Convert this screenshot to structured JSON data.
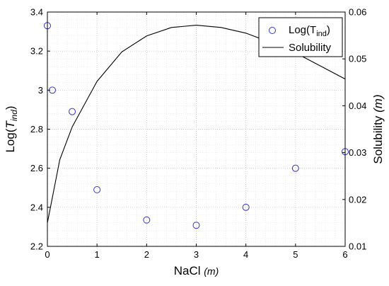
{
  "chart_data": {
    "type": "scatter+line",
    "xlabel": {
      "main": "NaCl ",
      "unit": "(m)"
    },
    "ylabel_left": {
      "main": "Log(",
      "sub": "ind",
      "var": "T",
      "close": ")"
    },
    "ylabel_right": {
      "main": "Solubility ",
      "unit": "(m)"
    },
    "xlim": [
      0,
      6
    ],
    "ylim_left": [
      2.2,
      3.4
    ],
    "ylim_right": [
      0.01,
      0.06
    ],
    "x_ticks": [
      "0",
      "1",
      "2",
      "3",
      "4",
      "5",
      "6"
    ],
    "y_left_ticks": [
      "2.2",
      "2.4",
      "2.6",
      "2.8",
      "3",
      "3.2",
      "3.4"
    ],
    "y_right_ticks": [
      "0.01",
      "0.02",
      "0.03",
      "0.04",
      "0.05",
      "0.06"
    ],
    "grid": true,
    "legend_position": "top-right",
    "series": [
      {
        "name": "Log(Tind)",
        "legend_main": "Log(T",
        "legend_sub": "ind",
        "legend_close": ")",
        "kind": "scatter",
        "axis": "left",
        "color": "#3333cc",
        "x": [
          0,
          0.1,
          0.5,
          1,
          2,
          3,
          4,
          5,
          6
        ],
        "y": [
          3.33,
          3.0,
          2.89,
          2.49,
          2.335,
          2.308,
          2.4,
          2.6,
          2.685
        ]
      },
      {
        "name": "Solubility",
        "kind": "line",
        "axis": "right",
        "color": "#000000",
        "x": [
          0,
          0.25,
          0.5,
          1,
          1.5,
          2,
          2.5,
          3,
          3.5,
          4,
          4.5,
          5,
          5.5,
          6
        ],
        "y": [
          0.015,
          0.0285,
          0.0355,
          0.0452,
          0.0515,
          0.0549,
          0.0567,
          0.0572,
          0.0567,
          0.0555,
          0.0535,
          0.0513,
          0.0485,
          0.0457
        ]
      }
    ]
  }
}
